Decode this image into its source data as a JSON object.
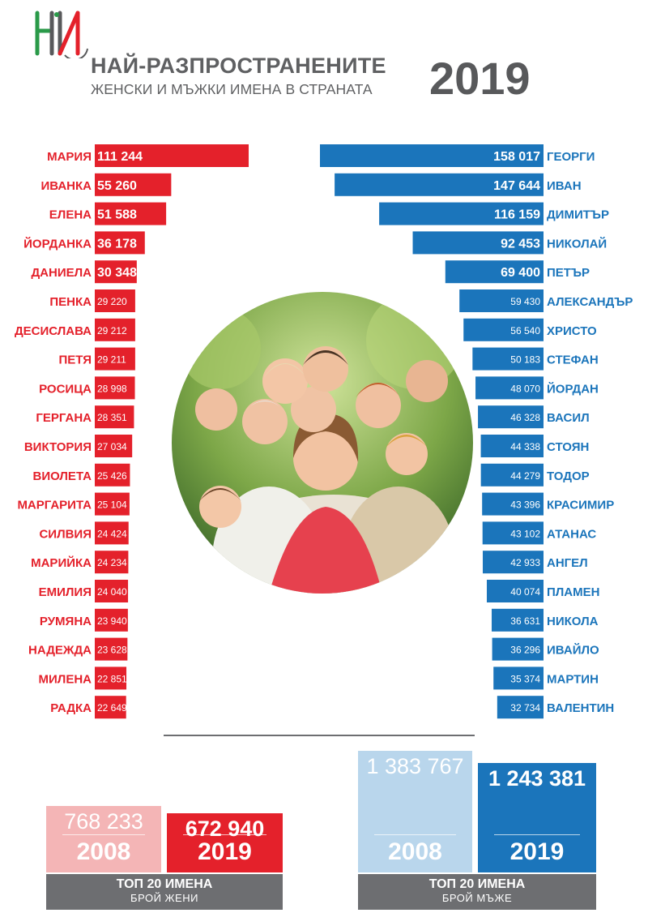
{
  "header": {
    "title_line1": "НАЙ-РАЗПРОСТРАНЕНИТЕ",
    "title_line2": "ЖЕНСКИ И МЪЖКИ ИМЕНА В СТРАНАТА",
    "year": "2019"
  },
  "colors": {
    "female": "#e4212b",
    "female_light": "#f4b5b6",
    "male": "#1b75bb",
    "male_light": "#b9d6ec",
    "gray": "#6d6e71"
  },
  "chart_data": [
    {
      "type": "bar",
      "orientation": "horizontal",
      "series_group": "female",
      "categories": [
        "МАРИЯ",
        "ИВАНКА",
        "ЕЛЕНА",
        "ЙОРДАНКА",
        "ДАНИЕЛА",
        "ПЕНКА",
        "ДЕСИСЛАВА",
        "ПЕТЯ",
        "РОСИЦА",
        "ГЕРГАНА",
        "ВИКТОРИЯ",
        "ВИОЛЕТА",
        "МАРГАРИТА",
        "СИЛВИЯ",
        "МАРИЙКА",
        "ЕМИЛИЯ",
        "РУМЯНА",
        "НАДЕЖДА",
        "МИЛЕНА",
        "РАДКА"
      ],
      "values": [
        111244,
        55260,
        51588,
        36178,
        30348,
        29220,
        29212,
        29211,
        28998,
        28351,
        27034,
        25426,
        25104,
        24424,
        24234,
        24040,
        23940,
        23628,
        22851,
        22649
      ],
      "value_labels": [
        "111 244",
        "55 260",
        "51 588",
        "36 178",
        "30 348",
        "29 220",
        "29 212",
        "29 211",
        "28 998",
        "28 351",
        "27 034",
        "25 426",
        "25 104",
        "24 424",
        "24 234",
        "24 040",
        "23 940",
        "23 628",
        "22 851",
        "22 649"
      ]
    },
    {
      "type": "bar",
      "orientation": "horizontal",
      "series_group": "male",
      "categories": [
        "ГЕОРГИ",
        "ИВАН",
        "ДИМИТЪР",
        "НИКОЛАЙ",
        "ПЕТЪР",
        "АЛЕКСАНДЪР",
        "ХРИСТО",
        "СТЕФАН",
        "ЙОРДАН",
        "ВАСИЛ",
        "СТОЯН",
        "ТОДОР",
        "КРАСИМИР",
        "АТАНАС",
        "АНГЕЛ",
        "ПЛАМЕН",
        "НИКОЛА",
        "ИВАЙЛО",
        "МАРТИН",
        "ВАЛЕНТИН"
      ],
      "values": [
        158017,
        147644,
        116159,
        92453,
        69400,
        59430,
        56540,
        50183,
        48070,
        46328,
        44338,
        44279,
        43396,
        43102,
        42933,
        40074,
        36631,
        36296,
        35374,
        32734
      ],
      "value_labels": [
        "158 017",
        "147 644",
        "116 159",
        "92 453",
        "69 400",
        "59 430",
        "56 540",
        "50 183",
        "48 070",
        "46 328",
        "44 338",
        "44 279",
        "43 396",
        "43 102",
        "42 933",
        "40 074",
        "36 631",
        "36 296",
        "35 374",
        "32 734"
      ]
    },
    {
      "type": "bar",
      "series_group": "female_totals",
      "categories": [
        "2008",
        "2019"
      ],
      "values": [
        768233,
        672940
      ],
      "value_labels": [
        "768 233",
        "672 940"
      ]
    },
    {
      "type": "bar",
      "series_group": "male_totals",
      "categories": [
        "2008",
        "2019"
      ],
      "values": [
        1383767,
        1243381
      ],
      "value_labels": [
        "1 383 767",
        "1 243 381"
      ]
    }
  ],
  "footer": {
    "female": {
      "line1": "ТОП 20 ИМЕНА",
      "line2": "БРОЙ ЖЕНИ"
    },
    "male": {
      "line1": "ТОП 20 ИМЕНА",
      "line2": "БРОЙ МЪЖЕ"
    }
  }
}
